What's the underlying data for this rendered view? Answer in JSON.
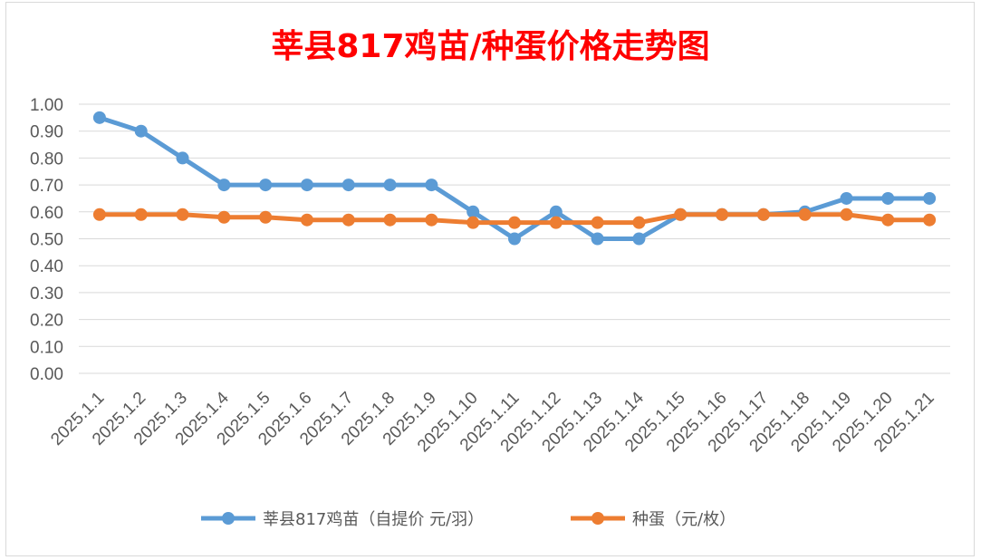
{
  "chart_data": {
    "type": "line",
    "title": "莘县817鸡苗/种蛋价格走势图",
    "categories": [
      "2025.1.1",
      "2025.1.2",
      "2025.1.3",
      "2025.1.4",
      "2025.1.5",
      "2025.1.6",
      "2025.1.7",
      "2025.1.8",
      "2025.1.9",
      "2025.1.10",
      "2025.1.11",
      "2025.1.12",
      "2025.1.13",
      "2025.1.14",
      "2025.1.15",
      "2025.1.16",
      "2025.1.17",
      "2025.1.18",
      "2025.1.19",
      "2025.1.20",
      "2025.1.21"
    ],
    "series": [
      {
        "name": "莘县817鸡苗（自提价 元/羽）",
        "color": "#5b9bd5",
        "values": [
          0.95,
          0.9,
          0.8,
          0.7,
          0.7,
          0.7,
          0.7,
          0.7,
          0.7,
          0.6,
          0.5,
          0.6,
          0.5,
          0.5,
          0.59,
          0.59,
          0.59,
          0.6,
          0.65,
          0.65,
          0.65
        ]
      },
      {
        "name": "种蛋（元/枚）",
        "color": "#ed7d31",
        "values": [
          0.59,
          0.59,
          0.59,
          0.58,
          0.58,
          0.57,
          0.57,
          0.57,
          0.57,
          0.56,
          0.56,
          0.56,
          0.56,
          0.56,
          0.59,
          0.59,
          0.59,
          0.59,
          0.59,
          0.57,
          0.57
        ]
      }
    ],
    "ylim": [
      0,
      1.0
    ],
    "yticks": [
      "0.00",
      "0.10",
      "0.20",
      "0.30",
      "0.40",
      "0.50",
      "0.60",
      "0.70",
      "0.80",
      "0.90",
      "1.00"
    ],
    "grid": true,
    "legend_position": "bottom",
    "title_color": "#ff0000"
  }
}
